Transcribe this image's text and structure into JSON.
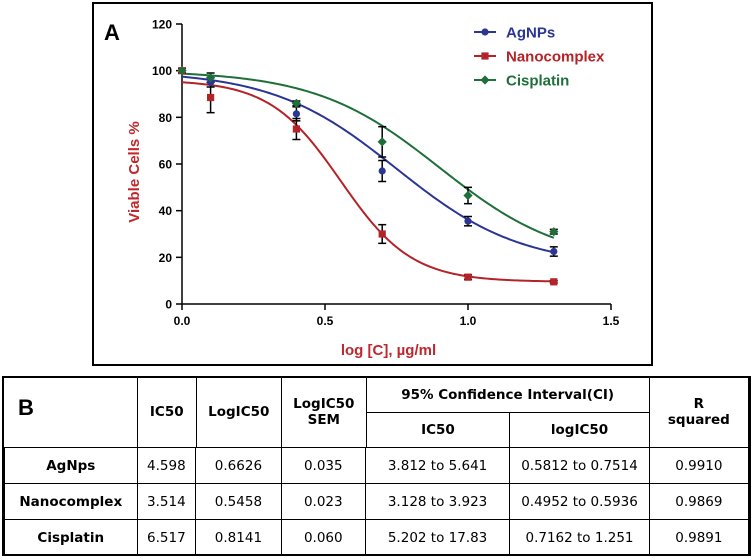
{
  "panel_a": {
    "label": "A"
  },
  "chart_data": {
    "type": "line",
    "title": "",
    "xlabel": "log [C], µg/ml",
    "ylabel": "Viable Cells %",
    "xlim": [
      0,
      1.5
    ],
    "ylim": [
      0,
      120
    ],
    "xticks": [
      0.0,
      0.5,
      1.0,
      1.5
    ],
    "xtick_labels": [
      "0.0",
      "0.5",
      "1.0",
      "1.5"
    ],
    "yticks": [
      0,
      20,
      40,
      60,
      80,
      100,
      120
    ],
    "ytick_labels": [
      "0",
      "20",
      "40",
      "60",
      "80",
      "100",
      "120"
    ],
    "legend_position": "top-right",
    "x": [
      0.0,
      0.1,
      0.4,
      0.7,
      1.0,
      1.3
    ],
    "series": [
      {
        "name": "AgNPs",
        "color": "#2b3595",
        "marker": "circle",
        "values": [
          100,
          95,
          81.5,
          57,
          35.5,
          22.5
        ],
        "errors": [
          1,
          2,
          3,
          4.5,
          2,
          2
        ],
        "fit": {
          "top": 100,
          "bottom": 16,
          "logIC50": 0.75,
          "hill": 2.0
        }
      },
      {
        "name": "Nanocomplex",
        "color": "#b42328",
        "marker": "square",
        "values": [
          100,
          88.5,
          75,
          30,
          11.5,
          9.5
        ],
        "errors": [
          1,
          6.5,
          4.5,
          4,
          1,
          0.5
        ],
        "fit": {
          "top": 96,
          "bottom": 9.5,
          "logIC50": 0.555,
          "hill": 3.5
        }
      },
      {
        "name": "Cisplatin",
        "color": "#1f6f3a",
        "marker": "diamond",
        "values": [
          100,
          97,
          86,
          69.5,
          46.5,
          31
        ],
        "errors": [
          1,
          2,
          1,
          6.5,
          3.5,
          1
        ],
        "fit": {
          "top": 100,
          "bottom": 17,
          "logIC50": 0.9,
          "hill": 2.0
        }
      }
    ],
    "label_colors": {
      "axis_title": "#c0282d",
      "tick": "#000000"
    }
  },
  "panel_b": {
    "label": "B",
    "headers": {
      "ic50": "IC50",
      "logic50": "LogIC50",
      "sem": [
        "LogIC50",
        "SEM"
      ],
      "ci": "95% Confidence Interval(CI)",
      "ci_ic50": "IC50",
      "ci_logic50": "logIC50",
      "r2": [
        "R",
        "squared"
      ]
    },
    "rows": [
      {
        "name": "AgNps",
        "ic50": "4.598",
        "logic50": "0.6626",
        "sem": "0.035",
        "ci_ic50": "3.812 to 5.641",
        "ci_logic50": "0.5812 to 0.7514",
        "r2": "0.9910"
      },
      {
        "name": "Nanocomplex",
        "ic50": "3.514",
        "logic50": "0.5458",
        "sem": "0.023",
        "ci_ic50": "3.128 to 3.923",
        "ci_logic50": "0.4952 to 0.5936",
        "r2": "0.9869"
      },
      {
        "name": "Cisplatin",
        "ic50": "6.517",
        "logic50": "0.8141",
        "sem": "0.060",
        "ci_ic50": "5.202 to 17.83",
        "ci_logic50": "0.7162 to 1.251",
        "r2": "0.9891"
      }
    ]
  }
}
